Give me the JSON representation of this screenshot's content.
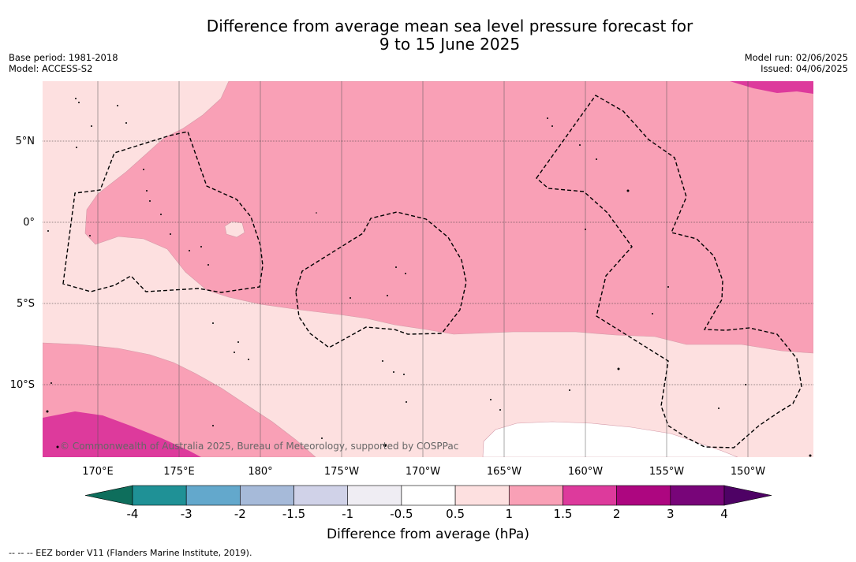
{
  "title": {
    "line1": "Difference from average mean sea level pressure forecast for",
    "line2": "9 to 15 June 2025"
  },
  "meta_left": {
    "base_period": "Base period: 1981-2018",
    "model": "Model: ACCESS-S2"
  },
  "meta_right": {
    "model_run": "Model run: 02/06/2025",
    "issued": "Issued: 04/06/2025"
  },
  "map": {
    "lat_labels": [
      "5°N",
      "0°",
      "5°S",
      "10°S"
    ],
    "lon_labels": [
      "170°E",
      "175°E",
      "180°",
      "175°W",
      "170°W",
      "165°W",
      "160°W",
      "155°W",
      "150°W"
    ],
    "copyright": "© Commonwealth of Australia 2025, Bureau of Meteorology, supported by COSPPac",
    "colors": {
      "band_0_5_to_1": "#fde0e0",
      "band_1_to_1_5": "#f9a0b6",
      "band_1_5_to_2": "#dd3a9c",
      "white": "#ffffff"
    }
  },
  "colorbar": {
    "ticks": [
      "-4",
      "-3",
      "-2",
      "-1.5",
      "-1",
      "-0.5",
      "0.5",
      "1",
      "1.5",
      "2",
      "3",
      "4"
    ],
    "colors": [
      "#0e6e5c",
      "#1f9196",
      "#63a8cc",
      "#a6bad9",
      "#d0d2e8",
      "#efedf3",
      "#ffffff",
      "#fde0e0",
      "#f9a0b6",
      "#dd3a9c",
      "#ad0680",
      "#780579",
      "#4e0265"
    ],
    "label": "Difference from average (hPa)"
  },
  "footnote": "--  --  -- EEZ border V11 (Flanders Marine Institute, 2019)."
}
